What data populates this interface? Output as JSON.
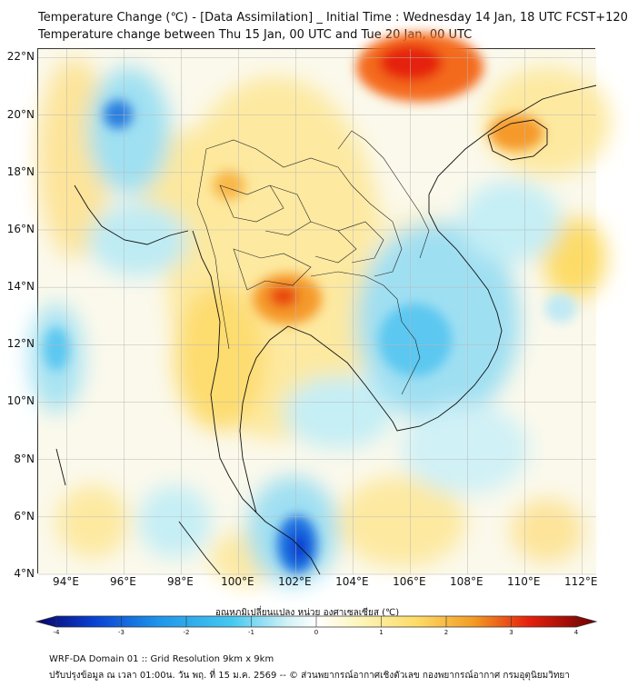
{
  "header": {
    "line1": "Temperature Change (℃) - [Data Assimilation] _ Initial Time : Wednesday 14 Jan, 18 UTC FCST+120",
    "line2": "Temperature change between Thu 15 Jan, 00 UTC and Tue 20 Jan, 00 UTC"
  },
  "map": {
    "lat_range": [
      4,
      22.3
    ],
    "lon_range": [
      93,
      112.5
    ],
    "lat_labels": [
      {
        "lat": 22,
        "text": "22°N"
      },
      {
        "lat": 20,
        "text": "20°N"
      },
      {
        "lat": 18,
        "text": "18°N"
      },
      {
        "lat": 16,
        "text": "16°N"
      },
      {
        "lat": 14,
        "text": "14°N"
      },
      {
        "lat": 12,
        "text": "12°N"
      },
      {
        "lat": 10,
        "text": "10°N"
      },
      {
        "lat": 8,
        "text": "8°N"
      },
      {
        "lat": 6,
        "text": "6°N"
      },
      {
        "lat": 4,
        "text": "4°N"
      }
    ],
    "lon_labels": [
      {
        "lon": 94,
        "text": "94°E"
      },
      {
        "lon": 96,
        "text": "96°E"
      },
      {
        "lon": 98,
        "text": "98°E"
      },
      {
        "lon": 100,
        "text": "100°E"
      },
      {
        "lon": 102,
        "text": "102°E"
      },
      {
        "lon": 104,
        "text": "104°E"
      },
      {
        "lon": 106,
        "text": "106°E"
      },
      {
        "lon": 108,
        "text": "108°E"
      },
      {
        "lon": 110,
        "text": "110°E"
      },
      {
        "lon": 112,
        "text": "112°E"
      }
    ]
  },
  "colorbar": {
    "label": "อุณหภูมิเปลี่ยนแปลง หน่วย องศาเซลเซียส (℃)",
    "min": -4,
    "max": 4,
    "ticks": [
      "-4",
      "-3",
      "-2",
      "-1",
      "0",
      "1",
      "2",
      "3",
      "4"
    ],
    "colors": [
      "#08036b",
      "#0a3fd0",
      "#1e96ea",
      "#46c9ef",
      "#d4f2f6",
      "#ffffff",
      "#fdf7c0",
      "#fddb66",
      "#f39c25",
      "#e5200d",
      "#6e0000"
    ]
  },
  "footer": {
    "line1": "WRF-DA Domain 01 :: Grid Resolution 9km x 9km",
    "line2": "ปรับปรุงข้อมูล ณ เวลา 01:00น. วัน พฤ. ที่ 15 ม.ค. 2569 -- © ส่วนพยากรณ์อากาศเชิงตัวเลข กองพยากรณ์อากาศ กรมอุตุนิยมวิทยา"
  }
}
